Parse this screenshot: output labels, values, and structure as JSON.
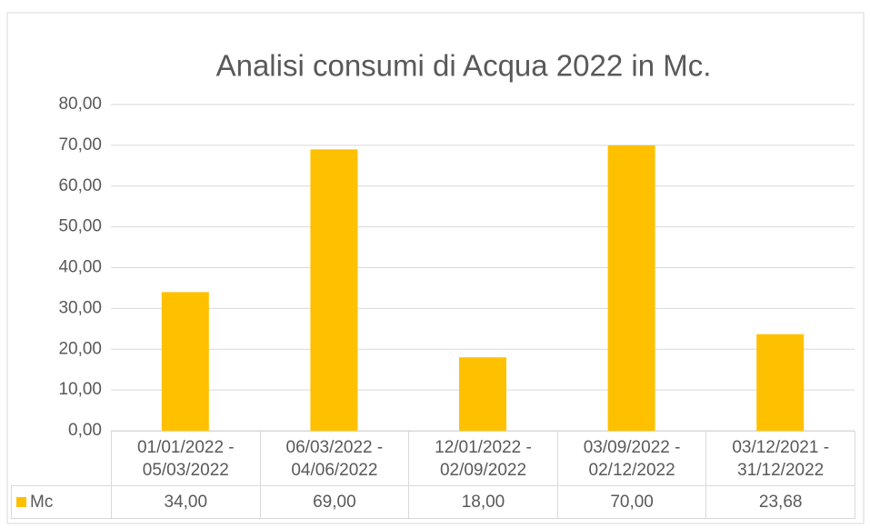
{
  "chart_data": {
    "type": "bar",
    "title": "Analisi consumi di Acqua 2022 in Mc.",
    "categories": [
      "01/01/2022 - 05/03/2022",
      "06/03/2022 - 04/06/2022",
      "12/01/2022 - 02/09/2022",
      "03/09/2022 - 02/12/2022",
      "03/12/2021 - 31/12/2022"
    ],
    "series": [
      {
        "name": "Mc",
        "color": "#ffc000",
        "values": [
          34,
          69,
          18,
          70,
          23.68
        ],
        "value_labels": [
          "34,00",
          "69,00",
          "18,00",
          "70,00",
          "23,68"
        ]
      }
    ],
    "ylim": [
      0,
      80
    ],
    "yticks": [
      {
        "value": 0,
        "label": "0,00"
      },
      {
        "value": 10,
        "label": "10,00"
      },
      {
        "value": 20,
        "label": "20,00"
      },
      {
        "value": 30,
        "label": "30,00"
      },
      {
        "value": 40,
        "label": "40,00"
      },
      {
        "value": 50,
        "label": "50,00"
      },
      {
        "value": 60,
        "label": "60,00"
      },
      {
        "value": 70,
        "label": "70,00"
      },
      {
        "value": 80,
        "label": "80,00"
      }
    ],
    "grid": true,
    "data_table": true
  }
}
